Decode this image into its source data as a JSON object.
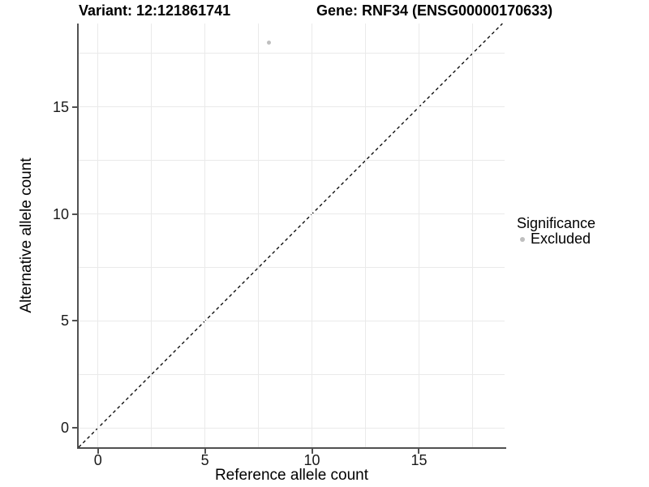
{
  "titles": {
    "variant": "Variant: 12:121861741",
    "gene": "Gene: RNF34 (ENSG00000170633)"
  },
  "axes": {
    "x_label": "Reference allele count",
    "y_label": "Alternative allele count",
    "x_tick_labels": [
      "0",
      "5",
      "10",
      "15"
    ],
    "y_tick_labels": [
      "0",
      "5",
      "10",
      "15"
    ]
  },
  "legend": {
    "title": "Significance",
    "items": [
      {
        "label": "Excluded",
        "color": "#bfbfbf"
      }
    ]
  },
  "colors": {
    "axis_line": "#515151",
    "gridline": "#eaeaea",
    "point": "#bfbfbf",
    "reference_line": "#111111",
    "text": "#000000"
  },
  "chart_data": {
    "type": "scatter",
    "title": "Variant: 12:121861741 — Gene: RNF34 (ENSG00000170633)",
    "xlabel": "Reference allele count",
    "ylabel": "Alternative allele count",
    "xlim": [
      -0.9,
      19.0
    ],
    "ylim": [
      -0.9,
      18.9
    ],
    "x_ticks": [
      0,
      5,
      10,
      15
    ],
    "y_ticks": [
      0,
      5,
      10,
      15
    ],
    "x_minor_ticks": [
      2.5,
      7.5,
      12.5,
      17.5
    ],
    "y_minor_ticks": [
      2.5,
      7.5,
      12.5,
      17.5
    ],
    "grid": true,
    "legend_position": "right",
    "series": [
      {
        "name": "Excluded",
        "color": "#bfbfbf",
        "points": [
          {
            "x": 8,
            "y": 18
          }
        ]
      }
    ],
    "reference_line": {
      "type": "identity y=x",
      "style": "dashed",
      "from": -0.9,
      "to": 18.9,
      "color": "#111111"
    }
  }
}
